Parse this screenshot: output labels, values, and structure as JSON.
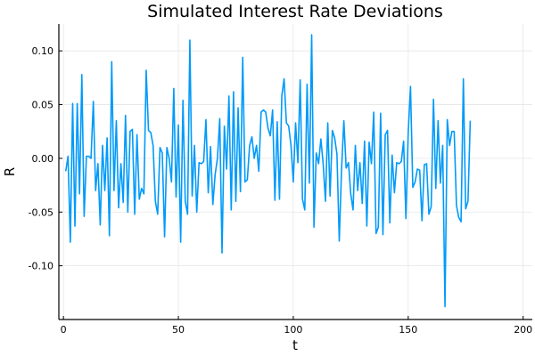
{
  "chart_data": {
    "type": "line",
    "title": "Simulated Interest Rate Deviations",
    "xlabel": "t",
    "ylabel": "R",
    "xlim": [
      -2,
      204
    ],
    "ylim": [
      -0.15,
      0.125
    ],
    "xticks": [
      0,
      50,
      100,
      150,
      200
    ],
    "xtick_labels": [
      "0",
      "50",
      "100",
      "150",
      "200"
    ],
    "yticks": [
      0.1,
      0.05,
      0.0,
      -0.05,
      -0.1
    ],
    "ytick_labels": [
      "0.10",
      "0.05",
      "0.00",
      "-0.05",
      "-0.10"
    ],
    "grid": true,
    "legend": "none",
    "series_color": "#009AFA",
    "series": [
      {
        "x_start": 1,
        "x_step": 1,
        "values": [
          -0.012,
          0.002,
          -0.078,
          0.051,
          -0.063,
          0.051,
          -0.033,
          0.078,
          -0.054,
          0.002,
          0.002,
          0.0,
          0.053,
          -0.03,
          -0.005,
          -0.062,
          0.012,
          -0.03,
          0.019,
          -0.072,
          0.09,
          -0.03,
          0.035,
          -0.046,
          -0.005,
          -0.041,
          0.04,
          -0.05,
          0.025,
          0.027,
          -0.052,
          0.022,
          -0.038,
          -0.028,
          -0.033,
          0.082,
          0.026,
          0.024,
          0.012,
          -0.04,
          -0.052,
          0.01,
          0.005,
          -0.073,
          0.01,
          0.0,
          -0.022,
          0.065,
          -0.036,
          0.031,
          -0.078,
          0.054,
          -0.04,
          -0.052,
          0.11,
          -0.035,
          0.012,
          -0.05,
          -0.004,
          -0.005,
          -0.003,
          0.036,
          -0.032,
          0.011,
          -0.043,
          -0.015,
          0.0,
          0.037,
          -0.088,
          0.03,
          -0.01,
          0.058,
          -0.048,
          0.062,
          -0.04,
          0.047,
          -0.031,
          0.094,
          -0.022,
          -0.02,
          0.012,
          0.02,
          0.0,
          0.012,
          -0.012,
          0.043,
          0.045,
          0.043,
          0.028,
          0.021,
          0.045,
          -0.039,
          0.034,
          -0.038,
          0.058,
          0.074,
          0.033,
          0.03,
          0.012,
          -0.022,
          0.033,
          -0.004,
          0.073,
          -0.038,
          -0.048,
          0.069,
          -0.023,
          0.115,
          -0.064,
          0.005,
          -0.005,
          0.018,
          -0.005,
          -0.04,
          0.033,
          -0.035,
          0.026,
          0.019,
          0.004,
          -0.077,
          -0.01,
          0.035,
          -0.009,
          -0.004,
          -0.033,
          -0.048,
          0.012,
          -0.03,
          -0.004,
          -0.042,
          0.016,
          -0.063,
          0.015,
          -0.005,
          0.043,
          -0.07,
          -0.064,
          0.042,
          -0.071,
          0.022,
          0.026,
          -0.06,
          0.003,
          -0.032,
          -0.004,
          -0.005,
          -0.003,
          0.016,
          -0.056,
          0.024,
          0.067,
          -0.027,
          -0.022,
          -0.01,
          -0.011,
          -0.058,
          -0.006,
          -0.005,
          -0.052,
          -0.045,
          0.055,
          -0.028,
          0.035,
          -0.023,
          0.012,
          -0.138,
          0.036,
          0.012,
          0.025,
          0.025,
          -0.044,
          -0.055,
          -0.059,
          0.074,
          -0.047,
          -0.04,
          0.035
        ]
      }
    ]
  }
}
